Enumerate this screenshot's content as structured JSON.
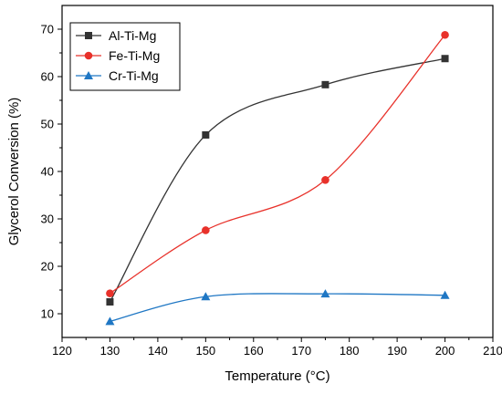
{
  "chart_data": {
    "type": "line",
    "xlabel": "Temperature (°C)",
    "ylabel": "Glycerol Conversion (%)",
    "xlim": [
      120,
      210
    ],
    "ylim": [
      5,
      75
    ],
    "xticks": [
      120,
      130,
      140,
      150,
      160,
      170,
      180,
      190,
      200,
      210
    ],
    "yticks": [
      10,
      20,
      30,
      40,
      50,
      60,
      70
    ],
    "x": [
      130,
      150,
      175,
      200
    ],
    "grid": false,
    "legend_position": "top-left",
    "series": [
      {
        "name": "Al-Ti-Mg",
        "values": [
          12.5,
          47.7,
          58.3,
          63.8
        ],
        "color": "#333333",
        "marker": "square"
      },
      {
        "name": "Fe-Ti-Mg",
        "values": [
          14.3,
          27.6,
          38.2,
          68.8
        ],
        "color": "#e8312a",
        "marker": "circle"
      },
      {
        "name": "Cr-Ti-Mg",
        "values": [
          8.4,
          13.6,
          14.2,
          13.9
        ],
        "color": "#1f77c4",
        "marker": "triangle"
      }
    ]
  }
}
